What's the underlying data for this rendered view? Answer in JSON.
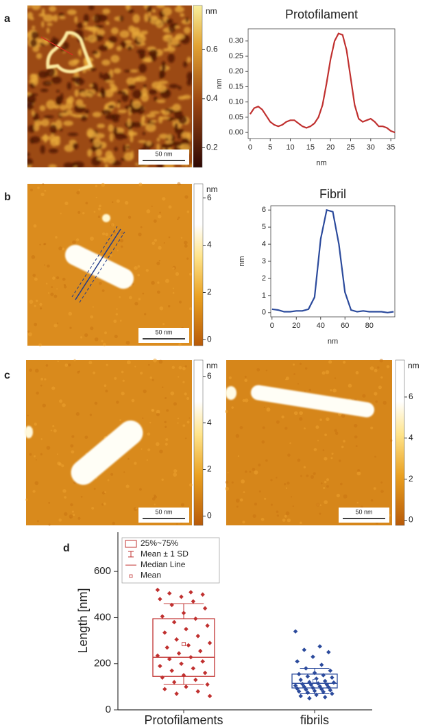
{
  "panels": [
    "a",
    "b",
    "c",
    "d"
  ],
  "images": [
    {
      "colorbar_label": "nm",
      "lim": [
        0.12,
        0.78
      ],
      "ticks": [
        0.2,
        0.4,
        0.6
      ],
      "scale_bar": "50 nm"
    },
    {
      "colorbar_label": "nm",
      "lim": [
        -0.25,
        6.6
      ],
      "ticks": [
        0,
        2,
        4,
        6
      ],
      "scale_bar": "50 nm"
    },
    {
      "colorbar_label": "nm",
      "lim": [
        -0.4,
        6.7
      ],
      "ticks": [
        0,
        2,
        4,
        6
      ],
      "scale_bar": "50 nm"
    },
    {
      "colorbar_label": "nm",
      "lim": [
        -0.25,
        7.8
      ],
      "ticks": [
        0,
        2,
        4,
        6
      ],
      "scale_bar": "50 nm"
    }
  ],
  "chart_data": [
    {
      "type": "line",
      "title": "Protofilament",
      "x_label": "nm",
      "y_label": "nm",
      "color": "#c0302f",
      "x": [
        0,
        1,
        2,
        3,
        4,
        5,
        6,
        7,
        8,
        9,
        10,
        11,
        12,
        13,
        14,
        15,
        16,
        17,
        18,
        19,
        20,
        21,
        22,
        23,
        24,
        25,
        26,
        27,
        28,
        29,
        30,
        31,
        32,
        33,
        34,
        35,
        36
      ],
      "values": [
        0.06,
        0.08,
        0.085,
        0.075,
        0.055,
        0.035,
        0.025,
        0.02,
        0.025,
        0.035,
        0.04,
        0.04,
        0.03,
        0.02,
        0.015,
        0.02,
        0.03,
        0.05,
        0.09,
        0.16,
        0.24,
        0.3,
        0.325,
        0.32,
        0.27,
        0.18,
        0.09,
        0.045,
        0.035,
        0.04,
        0.045,
        0.035,
        0.02,
        0.02,
        0.015,
        0.005,
        0.0
      ],
      "xlim": [
        -0.5,
        36
      ],
      "ylim": [
        -0.02,
        0.34
      ],
      "xticks": [
        0,
        5,
        10,
        15,
        20,
        25,
        30,
        35
      ],
      "yticks": [
        {
          "value": 0,
          "label": "0.00"
        },
        {
          "value": 0.05,
          "label": "0.05"
        },
        {
          "value": 0.1,
          "label": "0.10"
        },
        {
          "value": 0.15,
          "label": "0.15"
        },
        {
          "value": 0.2,
          "label": "0.20"
        },
        {
          "value": 0.25,
          "label": "0.25"
        },
        {
          "value": 0.3,
          "label": "0.30"
        }
      ]
    },
    {
      "type": "line",
      "title": "Fibril",
      "x_label": "nm",
      "y_label": "nm",
      "color": "#2b4a9c",
      "x": [
        0,
        5,
        10,
        15,
        20,
        25,
        30,
        35,
        40,
        45,
        50,
        55,
        60,
        65,
        70,
        75,
        80,
        85,
        90,
        95,
        100
      ],
      "values": [
        0.2,
        0.15,
        0.05,
        0.05,
        0.1,
        0.1,
        0.2,
        0.9,
        4.3,
        6.0,
        5.9,
        4.0,
        1.2,
        0.15,
        0.05,
        0.1,
        0.05,
        0.05,
        0.05,
        0.0,
        0.05
      ],
      "xlim": [
        -1,
        101
      ],
      "ylim": [
        -0.25,
        6.25
      ],
      "xticks": [
        0,
        20,
        40,
        60,
        80
      ],
      "yticks": [
        0,
        1,
        2,
        3,
        4,
        5,
        6
      ]
    },
    {
      "type": "box",
      "y_label": "Length [nm]",
      "categories": [
        "Protofilaments",
        "fibrils"
      ],
      "colors": [
        "#c0302f",
        "#2b4a9c"
      ],
      "legend": [
        "25%~75%",
        "Mean ± 1 SD",
        "Median Line",
        "Mean"
      ],
      "ylim": [
        0,
        770
      ],
      "yticks": [
        0,
        200,
        400,
        600
      ],
      "boxes": [
        {
          "q1": 145,
          "median": 228,
          "q3": 395,
          "mean": 285,
          "sd": 175,
          "points": [
            520,
            510,
            505,
            500,
            490,
            480,
            470,
            455,
            440,
            420,
            405,
            395,
            380,
            365,
            350,
            335,
            320,
            305,
            290,
            280,
            270,
            255,
            245,
            235,
            228,
            220,
            210,
            200,
            190,
            180,
            170,
            160,
            150,
            140,
            130,
            120,
            110,
            100,
            90,
            80,
            70,
            60
          ]
        },
        {
          "q1": 95,
          "median": 115,
          "q3": 155,
          "mean": 125,
          "sd": 55,
          "points": [
            340,
            275,
            260,
            250,
            230,
            210,
            195,
            180,
            170,
            160,
            155,
            150,
            145,
            140,
            135,
            130,
            125,
            120,
            118,
            115,
            112,
            110,
            108,
            105,
            102,
            100,
            98,
            95,
            92,
            90,
            88,
            85,
            82,
            80,
            78,
            75,
            70,
            65,
            60,
            55,
            50
          ]
        }
      ]
    }
  ]
}
